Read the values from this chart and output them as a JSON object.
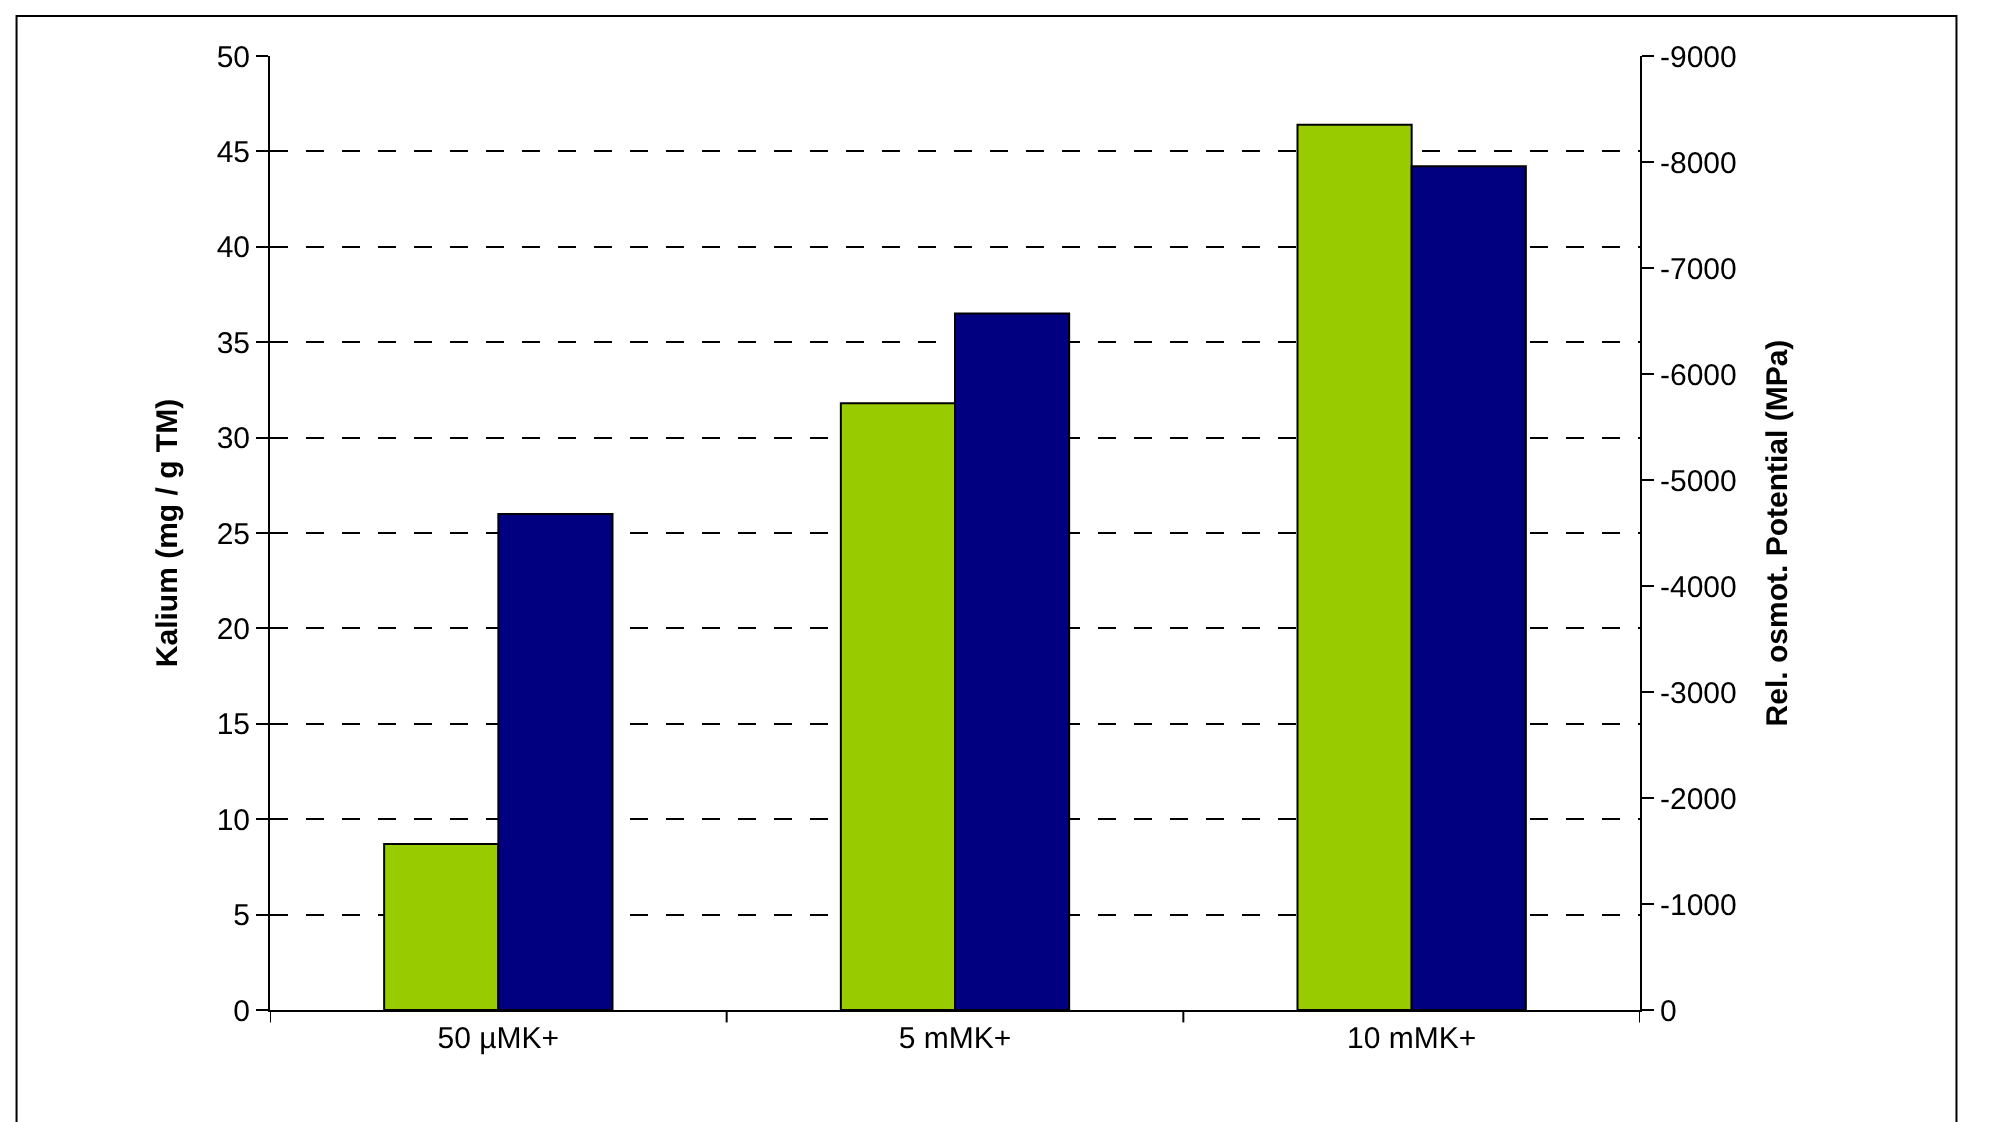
{
  "chart_data": {
    "type": "bar",
    "ylabel": "Kalium (mg / g TM)",
    "y2label": "Rel. osmot. Potential (MPa)",
    "categories": [
      "50 µMK+",
      "5 mMK+",
      "10 mMK+"
    ],
    "series": [
      {
        "color": "#99cc00",
        "values": [
          8.7,
          31.8,
          46.4
        ]
      },
      {
        "color": "#000080",
        "values": [
          -4680,
          -6570,
          -7960
        ],
        "axis": "y2"
      }
    ],
    "ylim": [
      0,
      50
    ],
    "yticks": [
      0,
      5,
      10,
      15,
      20,
      25,
      30,
      35,
      40,
      45,
      50
    ],
    "y2lim": [
      0,
      -9000
    ],
    "y2ticks": [
      0,
      -1000,
      -2000,
      -3000,
      -4000,
      -5000,
      -6000,
      -7000,
      -8000,
      -9000
    ],
    "grid": "y"
  }
}
